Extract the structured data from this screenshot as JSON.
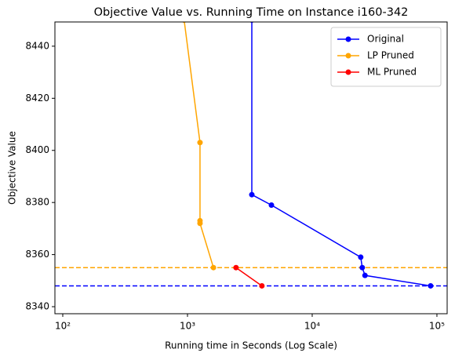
{
  "chart_data": {
    "type": "line",
    "title": "Objective Value vs. Running Time on Instance i160-342",
    "xlabel": "Running time in Seconds (Log Scale)",
    "ylabel": "Objective Value",
    "xscale": "log",
    "xlim": [
      86.5,
      120800
    ],
    "ylim": [
      8337.3,
      8449.3
    ],
    "xticks": [
      {
        "value": 100,
        "label": "10²"
      },
      {
        "value": 1000,
        "label": "10³"
      },
      {
        "value": 10000,
        "label": "10⁴"
      },
      {
        "value": 100000,
        "label": "10⁵"
      }
    ],
    "yticks": [
      8340,
      8360,
      8380,
      8400,
      8420,
      8440
    ],
    "legend": "upper right",
    "series": [
      {
        "name": "Original",
        "color": "#0000ff",
        "x": [
          3280,
          3280,
          4710,
          24500,
          25200,
          26500,
          89000
        ],
        "values": [
          8450,
          8383,
          8379,
          8359,
          8355,
          8352,
          8348
        ]
      },
      {
        "name": "LP Pruned",
        "color": "#ffa500",
        "x": [
          940,
          1260,
          1260,
          1260,
          1615
        ],
        "values": [
          8450,
          8403,
          8373,
          8372,
          8355
        ]
      },
      {
        "name": "ML Pruned",
        "color": "#ff0000",
        "x": [
          2450,
          3950
        ],
        "values": [
          8355,
          8348
        ]
      }
    ],
    "hlines": [
      {
        "value": 8355,
        "color": "#ffa500"
      },
      {
        "value": 8348,
        "color": "#0000ff"
      }
    ]
  }
}
